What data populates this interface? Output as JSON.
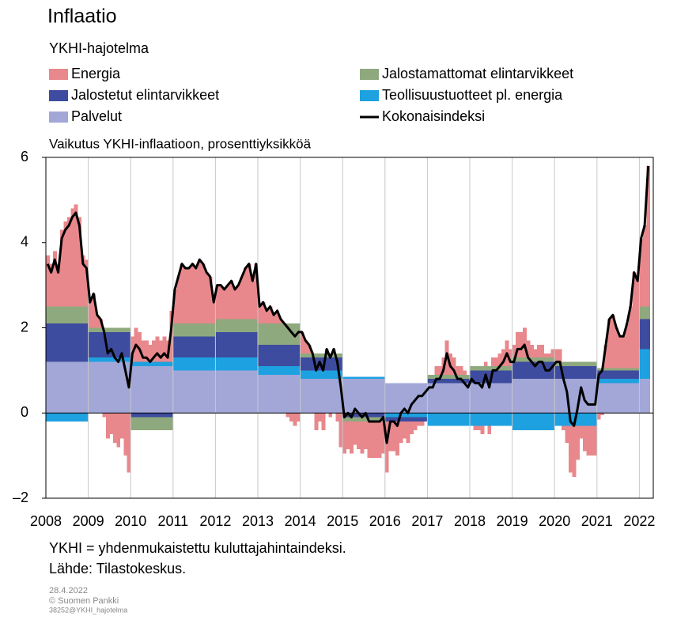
{
  "chart_data": {
    "type": "bar",
    "stacked": true,
    "title": "Inflaatio",
    "subtitle": "YKHI-hajotelma",
    "y_axis_label": "Vaikutus YKHI-inflaatioon, prosenttiyksikköä",
    "notes": [
      "YKHI = yhdenmukaistettu kuluttajahintaindeksi.",
      "Lähde: Tilastokeskus."
    ],
    "footer": [
      "28.4.2022",
      "© Suomen Pankki",
      "38252@YKHI_hajotelma"
    ],
    "ylim": [
      -2,
      6
    ],
    "yticks": [
      {
        "value": -2,
        "label": "–2"
      },
      0,
      2,
      4,
      6
    ],
    "xgrid": true,
    "categories": [
      "2008",
      null,
      null,
      null,
      null,
      null,
      null,
      null,
      null,
      null,
      null,
      null,
      "2009",
      null,
      null,
      null,
      null,
      null,
      null,
      null,
      null,
      null,
      null,
      null,
      "2010",
      null,
      null,
      null,
      null,
      null,
      null,
      null,
      null,
      null,
      null,
      null,
      "2011",
      null,
      null,
      null,
      null,
      null,
      null,
      null,
      null,
      null,
      null,
      null,
      "2012",
      null,
      null,
      null,
      null,
      null,
      null,
      null,
      null,
      null,
      null,
      null,
      "2013",
      null,
      null,
      null,
      null,
      null,
      null,
      null,
      null,
      null,
      null,
      null,
      "2014",
      null,
      null,
      null,
      null,
      null,
      null,
      null,
      null,
      null,
      null,
      null,
      "2015",
      null,
      null,
      null,
      null,
      null,
      null,
      null,
      null,
      null,
      null,
      null,
      "2016",
      null,
      null,
      null,
      null,
      null,
      null,
      null,
      null,
      null,
      null,
      null,
      "2017",
      null,
      null,
      null,
      null,
      null,
      null,
      null,
      null,
      null,
      null,
      null,
      "2018",
      null,
      null,
      null,
      null,
      null,
      null,
      null,
      null,
      null,
      null,
      null,
      "2019",
      null,
      null,
      null,
      null,
      null,
      null,
      null,
      null,
      null,
      null,
      null,
      "2020",
      null,
      null,
      null,
      null,
      null,
      null,
      null,
      null,
      null,
      null,
      null,
      "2021",
      null,
      null,
      null,
      null,
      null,
      null,
      null,
      null,
      null,
      null,
      null,
      "2022",
      null,
      null
    ],
    "series": [
      {
        "name": "Energia",
        "color": "#e8888c",
        "values": [
          1.2,
          1.0,
          1.3,
          1.0,
          1.8,
          2.0,
          2.1,
          2.3,
          2.4,
          2.1,
          1.2,
          1.1,
          0.6,
          0.8,
          0.3,
          0.2,
          -0.1,
          -0.6,
          -0.5,
          -0.7,
          -0.8,
          -0.6,
          -1.0,
          -1.4,
          0.6,
          0.8,
          0.7,
          0.5,
          0.5,
          0.4,
          0.5,
          0.6,
          0.5,
          0.6,
          0.5,
          1.2,
          0.8,
          1.1,
          1.4,
          1.3,
          1.3,
          1.4,
          1.3,
          1.5,
          1.4,
          1.2,
          1.1,
          0.5,
          0.8,
          0.8,
          0.7,
          0.8,
          0.9,
          0.7,
          0.8,
          1.0,
          1.2,
          1.3,
          0.9,
          1.3,
          0.4,
          0.5,
          0.3,
          0.4,
          0.2,
          0.3,
          0.1,
          0.0,
          -0.1,
          -0.2,
          -0.3,
          -0.2,
          0.5,
          0.3,
          0.2,
          0.0,
          -0.4,
          -0.2,
          -0.4,
          0.1,
          -0.1,
          0.1,
          -0.2,
          -0.8,
          -0.75,
          -0.65,
          -0.75,
          -0.55,
          -0.65,
          -0.75,
          -0.65,
          -0.85,
          -0.85,
          -0.85,
          -0.85,
          -0.75,
          -1.2,
          -0.7,
          -0.7,
          -0.8,
          -0.5,
          -0.4,
          -0.5,
          -0.3,
          -0.2,
          -0.1,
          -0.1,
          0.0,
          0.0,
          0.0,
          0.2,
          0.2,
          0.4,
          0.8,
          0.5,
          0.4,
          0.2,
          0.2,
          0.1,
          0.0,
          0.0,
          -0.1,
          -0.1,
          -0.2,
          0.1,
          -0.2,
          0.2,
          0.2,
          0.3,
          0.4,
          0.6,
          0.4,
          0.3,
          0.6,
          0.6,
          0.7,
          0.4,
          0.3,
          0.2,
          0.3,
          0.3,
          0.1,
          0.1,
          0.2,
          0.3,
          0.3,
          -0.1,
          -0.4,
          -1.1,
          -1.2,
          -0.8,
          -0.3,
          -0.6,
          -0.7,
          -0.7,
          -0.7,
          -0.15,
          -0.05,
          0.55,
          1.15,
          1.25,
          0.95,
          0.75,
          0.75,
          1.05,
          1.45,
          2.25,
          2.05,
          1.6,
          1.9,
          3.3
        ]
      },
      {
        "name": "Jalostamattomat elintarvikkeet",
        "color": "#8fa97e",
        "values": [
          0.4,
          0.4,
          0.4,
          0.4,
          0.4,
          0.4,
          0.4,
          0.4,
          0.4,
          0.4,
          0.4,
          0.4,
          0.1,
          0.1,
          0.1,
          0.1,
          0.1,
          0.1,
          0.1,
          0.1,
          0.1,
          0.1,
          0.1,
          0.1,
          -0.3,
          -0.3,
          -0.3,
          -0.3,
          -0.3,
          -0.3,
          -0.3,
          -0.3,
          -0.3,
          -0.3,
          -0.3,
          -0.3,
          0.3,
          0.3,
          0.3,
          0.3,
          0.3,
          0.3,
          0.3,
          0.3,
          0.3,
          0.3,
          0.3,
          0.3,
          0.3,
          0.3,
          0.3,
          0.3,
          0.3,
          0.3,
          0.3,
          0.3,
          0.3,
          0.3,
          0.3,
          0.3,
          0.5,
          0.5,
          0.5,
          0.5,
          0.5,
          0.5,
          0.5,
          0.5,
          0.5,
          0.5,
          0.5,
          0.5,
          0.1,
          0.1,
          0.1,
          0.1,
          0.1,
          0.1,
          0.1,
          0.1,
          0.1,
          0.1,
          0.1,
          0.1,
          -0.1,
          -0.1,
          -0.1,
          -0.1,
          -0.1,
          -0.1,
          -0.1,
          -0.1,
          -0.1,
          -0.1,
          -0.1,
          -0.1,
          0,
          0,
          0,
          0,
          0,
          0,
          0,
          0,
          0,
          0,
          0,
          0,
          0.1,
          0.1,
          0.1,
          0.1,
          0.1,
          0.1,
          0.1,
          0.1,
          0.1,
          0.1,
          0.1,
          0.1,
          0.1,
          0.1,
          0.1,
          0.1,
          0.1,
          0.1,
          0.1,
          0.1,
          0.1,
          0.1,
          0.1,
          0.1,
          0.1,
          0.1,
          0.1,
          0.1,
          0.1,
          0.1,
          0.1,
          0.1,
          0.1,
          0.1,
          0.1,
          0.1,
          0.1,
          0.1,
          0.1,
          0.1,
          0.1,
          0.1,
          0.1,
          0.1,
          0.1,
          0.1,
          0.1,
          0.1,
          0.05,
          0.05,
          0.05,
          0.05,
          0.05,
          0.05,
          0.05,
          0.05,
          0.05,
          0.05,
          0.05,
          0.05,
          0.3,
          0.3,
          0.3
        ]
      },
      {
        "name": "Jalostetut elintarvikkeet",
        "color": "#3d4c9e",
        "values": [
          0.9,
          0.9,
          0.9,
          0.9,
          0.9,
          0.9,
          0.9,
          0.9,
          0.9,
          0.9,
          0.9,
          0.9,
          0.6,
          0.6,
          0.6,
          0.6,
          0.6,
          0.6,
          0.6,
          0.6,
          0.6,
          0.6,
          0.6,
          0.6,
          -0.1,
          -0.1,
          -0.1,
          -0.1,
          -0.1,
          -0.1,
          -0.1,
          -0.1,
          -0.1,
          -0.1,
          -0.1,
          -0.1,
          0.5,
          0.5,
          0.5,
          0.5,
          0.5,
          0.5,
          0.5,
          0.5,
          0.5,
          0.5,
          0.5,
          0.5,
          0.6,
          0.6,
          0.6,
          0.6,
          0.6,
          0.6,
          0.6,
          0.6,
          0.6,
          0.6,
          0.6,
          0.6,
          0.5,
          0.5,
          0.5,
          0.5,
          0.5,
          0.5,
          0.5,
          0.5,
          0.5,
          0.5,
          0.5,
          0.5,
          0.3,
          0.3,
          0.3,
          0.3,
          0.3,
          0.3,
          0.3,
          0.3,
          0.3,
          0.3,
          0.3,
          0.3,
          -0.1,
          -0.1,
          -0.1,
          -0.1,
          -0.1,
          -0.1,
          -0.1,
          -0.1,
          -0.1,
          -0.1,
          -0.1,
          -0.1,
          -0.1,
          -0.1,
          -0.1,
          -0.1,
          -0.1,
          -0.1,
          -0.1,
          -0.1,
          -0.1,
          -0.1,
          -0.1,
          -0.1,
          0.1,
          0.1,
          0.1,
          0.1,
          0.1,
          0.1,
          0.1,
          0.1,
          0.1,
          0.1,
          0.1,
          0.1,
          0.3,
          0.3,
          0.3,
          0.3,
          0.3,
          0.3,
          0.3,
          0.3,
          0.3,
          0.3,
          0.3,
          0.3,
          0.4,
          0.4,
          0.4,
          0.4,
          0.4,
          0.4,
          0.4,
          0.4,
          0.4,
          0.4,
          0.4,
          0.4,
          0.3,
          0.3,
          0.3,
          0.3,
          0.3,
          0.3,
          0.3,
          0.3,
          0.3,
          0.3,
          0.3,
          0.3,
          0.2,
          0.2,
          0.2,
          0.2,
          0.2,
          0.2,
          0.2,
          0.2,
          0.2,
          0.2,
          0.2,
          0.2,
          0.7,
          0.7,
          0.7
        ]
      },
      {
        "name": "Teollisuustuotteet pl. energia",
        "color": "#1ea1e0",
        "values": [
          -0.2,
          -0.2,
          -0.2,
          -0.2,
          -0.2,
          -0.2,
          -0.2,
          -0.2,
          -0.2,
          -0.2,
          -0.2,
          -0.2,
          0.1,
          0.1,
          0.1,
          0.1,
          0.1,
          0.1,
          0.1,
          0.1,
          0.1,
          0.1,
          0.1,
          0.1,
          0.1,
          0.1,
          0.1,
          0.1,
          0.1,
          0.1,
          0.1,
          0.1,
          0.1,
          0.1,
          0.1,
          0.1,
          0.3,
          0.3,
          0.3,
          0.3,
          0.3,
          0.3,
          0.3,
          0.3,
          0.3,
          0.3,
          0.3,
          0.3,
          0.3,
          0.3,
          0.3,
          0.3,
          0.3,
          0.3,
          0.3,
          0.3,
          0.3,
          0.3,
          0.3,
          0.3,
          0.2,
          0.2,
          0.2,
          0.2,
          0.2,
          0.2,
          0.2,
          0.2,
          0.2,
          0.2,
          0.2,
          0.2,
          0.2,
          0.2,
          0.2,
          0.2,
          0.2,
          0.2,
          0.2,
          0.2,
          0.2,
          0.2,
          0.2,
          0.2,
          0.05,
          0.05,
          0.05,
          0.05,
          0.05,
          0.05,
          0.05,
          0.05,
          0.05,
          0.05,
          0.05,
          0.05,
          -0.1,
          -0.1,
          -0.1,
          -0.1,
          -0.1,
          -0.1,
          -0.1,
          -0.1,
          -0.1,
          -0.1,
          -0.1,
          -0.1,
          -0.3,
          -0.3,
          -0.3,
          -0.3,
          -0.3,
          -0.3,
          -0.3,
          -0.3,
          -0.3,
          -0.3,
          -0.3,
          -0.3,
          -0.3,
          -0.3,
          -0.3,
          -0.3,
          -0.3,
          -0.3,
          -0.3,
          -0.3,
          -0.3,
          -0.3,
          -0.3,
          -0.3,
          -0.4,
          -0.4,
          -0.4,
          -0.4,
          -0.4,
          -0.4,
          -0.4,
          -0.4,
          -0.4,
          -0.4,
          -0.4,
          -0.4,
          -0.3,
          -0.3,
          -0.3,
          -0.3,
          -0.3,
          -0.3,
          -0.3,
          -0.3,
          -0.3,
          -0.3,
          -0.3,
          -0.3,
          0.1,
          0.1,
          0.1,
          0.1,
          0.1,
          0.1,
          0.1,
          0.1,
          0.1,
          0.1,
          0.1,
          0.1,
          0.7,
          0.7,
          0.7
        ]
      },
      {
        "name": "Palvelut",
        "color": "#a2a7d8",
        "values": [
          1.2,
          1.2,
          1.2,
          1.2,
          1.2,
          1.2,
          1.2,
          1.2,
          1.2,
          1.2,
          1.2,
          1.2,
          1.2,
          1.2,
          1.2,
          1.2,
          1.2,
          1.2,
          1.2,
          1.2,
          1.2,
          1.2,
          1.2,
          1.2,
          1.1,
          1.1,
          1.1,
          1.1,
          1.1,
          1.1,
          1.1,
          1.1,
          1.1,
          1.1,
          1.1,
          1.1,
          1.0,
          1.0,
          1.0,
          1.0,
          1.0,
          1.0,
          1.0,
          1.0,
          1.0,
          1.0,
          1.0,
          1.0,
          1.0,
          1.0,
          1.0,
          1.0,
          1.0,
          1.0,
          1.0,
          1.0,
          1.0,
          1.0,
          1.0,
          1.0,
          0.9,
          0.9,
          0.9,
          0.9,
          0.9,
          0.9,
          0.9,
          0.9,
          0.9,
          0.9,
          0.9,
          0.9,
          0.8,
          0.8,
          0.8,
          0.8,
          0.8,
          0.8,
          0.8,
          0.8,
          0.8,
          0.8,
          0.8,
          0.8,
          0.8,
          0.8,
          0.8,
          0.8,
          0.8,
          0.8,
          0.8,
          0.8,
          0.8,
          0.8,
          0.8,
          0.8,
          0.7,
          0.7,
          0.7,
          0.7,
          0.7,
          0.7,
          0.7,
          0.7,
          0.7,
          0.7,
          0.7,
          0.7,
          0.7,
          0.7,
          0.7,
          0.7,
          0.7,
          0.7,
          0.7,
          0.7,
          0.7,
          0.7,
          0.7,
          0.7,
          0.7,
          0.7,
          0.7,
          0.7,
          0.7,
          0.7,
          0.7,
          0.7,
          0.7,
          0.7,
          0.7,
          0.7,
          0.8,
          0.8,
          0.8,
          0.8,
          0.8,
          0.8,
          0.8,
          0.8,
          0.8,
          0.8,
          0.8,
          0.8,
          0.8,
          0.8,
          0.8,
          0.8,
          0.8,
          0.8,
          0.8,
          0.8,
          0.8,
          0.8,
          0.8,
          0.8,
          0.7,
          0.7,
          0.7,
          0.7,
          0.7,
          0.7,
          0.7,
          0.7,
          0.7,
          0.7,
          0.7,
          0.7,
          0.8,
          0.8,
          0.8
        ]
      },
      {
        "name": "Kokonaisindeksi",
        "color": "#000000",
        "type": "line",
        "values": [
          3.5,
          3.3,
          3.6,
          3.3,
          4.1,
          4.3,
          4.4,
          4.6,
          4.7,
          4.4,
          3.5,
          3.4,
          2.6,
          2.8,
          2.3,
          2.2,
          1.9,
          1.4,
          1.5,
          1.3,
          1.2,
          1.4,
          1.0,
          0.6,
          1.4,
          1.6,
          1.5,
          1.3,
          1.3,
          1.2,
          1.3,
          1.4,
          1.3,
          1.4,
          1.3,
          2.0,
          2.9,
          3.2,
          3.5,
          3.4,
          3.4,
          3.5,
          3.4,
          3.6,
          3.5,
          3.3,
          3.2,
          2.6,
          3.0,
          3.0,
          2.9,
          3.0,
          3.1,
          2.9,
          3.0,
          3.2,
          3.4,
          3.5,
          3.1,
          3.5,
          2.5,
          2.6,
          2.4,
          2.5,
          2.3,
          2.4,
          2.2,
          2.1,
          2.0,
          1.9,
          1.8,
          1.9,
          1.9,
          1.7,
          1.6,
          1.4,
          1.0,
          1.2,
          1.0,
          1.5,
          1.3,
          1.5,
          1.2,
          0.6,
          -0.1,
          0.0,
          -0.1,
          0.1,
          0.0,
          -0.1,
          0.0,
          -0.2,
          -0.2,
          -0.2,
          -0.2,
          -0.1,
          -0.7,
          -0.2,
          -0.2,
          -0.3,
          0.0,
          0.1,
          0.0,
          0.2,
          0.3,
          0.4,
          0.4,
          0.5,
          0.6,
          0.6,
          0.8,
          0.8,
          1.0,
          1.4,
          1.1,
          1.0,
          0.8,
          0.8,
          0.7,
          0.6,
          0.8,
          0.7,
          0.7,
          0.6,
          0.9,
          0.6,
          1.0,
          1.0,
          1.1,
          1.2,
          1.4,
          1.2,
          1.2,
          1.5,
          1.5,
          1.6,
          1.3,
          1.2,
          1.1,
          1.2,
          1.2,
          1.0,
          1.0,
          1.1,
          1.2,
          1.2,
          0.8,
          0.5,
          -0.2,
          -0.3,
          0.1,
          0.6,
          0.3,
          0.2,
          0.2,
          0.2,
          0.9,
          1.0,
          1.6,
          2.2,
          2.3,
          2.0,
          1.8,
          1.8,
          2.1,
          2.5,
          3.3,
          3.1,
          4.1,
          4.4,
          5.8
        ]
      }
    ]
  }
}
